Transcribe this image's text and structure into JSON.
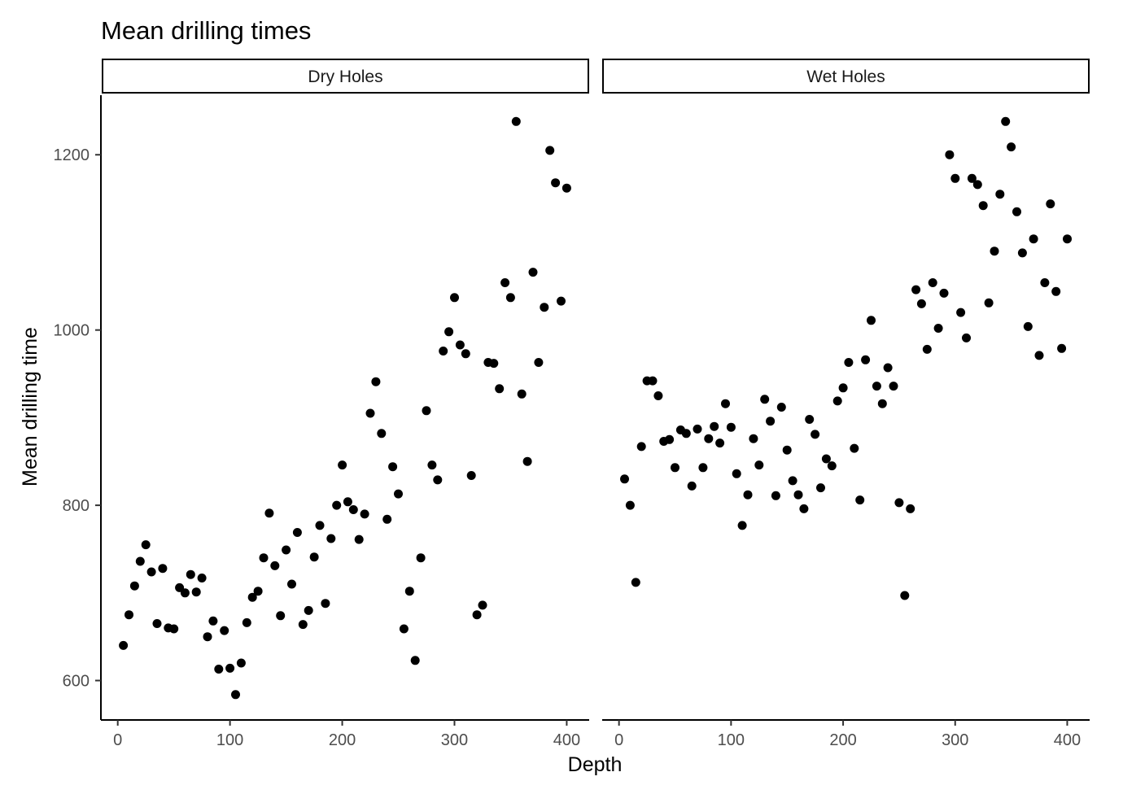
{
  "chart_data": {
    "type": "scatter",
    "title": "Mean drilling times",
    "xlabel": "Depth",
    "ylabel": "Mean drilling time",
    "xlim": [
      -15,
      420
    ],
    "ylim": [
      555,
      1268
    ],
    "x_ticks": [
      0,
      100,
      200,
      300,
      400
    ],
    "y_ticks": [
      600,
      800,
      1000,
      1200
    ],
    "x_tick_labels": [
      "0",
      "100",
      "200",
      "300",
      "400"
    ],
    "y_tick_labels": [
      "600",
      "800",
      "1000",
      "1200"
    ],
    "grid": false,
    "legend": "none",
    "point_color": "#000000",
    "panels": [
      {
        "name": "Dry Holes",
        "points": [
          [
            5,
            640
          ],
          [
            10,
            675
          ],
          [
            15,
            708
          ],
          [
            20,
            736
          ],
          [
            25,
            755
          ],
          [
            30,
            724
          ],
          [
            35,
            665
          ],
          [
            40,
            728
          ],
          [
            45,
            660
          ],
          [
            50,
            659
          ],
          [
            55,
            706
          ],
          [
            60,
            700
          ],
          [
            65,
            721
          ],
          [
            70,
            701
          ],
          [
            75,
            717
          ],
          [
            80,
            650
          ],
          [
            85,
            668
          ],
          [
            90,
            613
          ],
          [
            95,
            657
          ],
          [
            100,
            614
          ],
          [
            105,
            584
          ],
          [
            110,
            620
          ],
          [
            115,
            666
          ],
          [
            120,
            695
          ],
          [
            125,
            702
          ],
          [
            130,
            740
          ],
          [
            135,
            791
          ],
          [
            140,
            731
          ],
          [
            145,
            674
          ],
          [
            150,
            749
          ],
          [
            155,
            710
          ],
          [
            160,
            769
          ],
          [
            165,
            664
          ],
          [
            170,
            680
          ],
          [
            175,
            741
          ],
          [
            180,
            777
          ],
          [
            185,
            688
          ],
          [
            190,
            762
          ],
          [
            195,
            800
          ],
          [
            200,
            846
          ],
          [
            205,
            804
          ],
          [
            210,
            795
          ],
          [
            215,
            761
          ],
          [
            220,
            790
          ],
          [
            225,
            905
          ],
          [
            230,
            941
          ],
          [
            235,
            882
          ],
          [
            240,
            784
          ],
          [
            245,
            844
          ],
          [
            250,
            813
          ],
          [
            255,
            659
          ],
          [
            260,
            702
          ],
          [
            265,
            623
          ],
          [
            270,
            740
          ],
          [
            275,
            908
          ],
          [
            280,
            846
          ],
          [
            285,
            829
          ],
          [
            290,
            976
          ],
          [
            295,
            998
          ],
          [
            300,
            1037
          ],
          [
            305,
            983
          ],
          [
            310,
            973
          ],
          [
            315,
            834
          ],
          [
            320,
            675
          ],
          [
            325,
            686
          ],
          [
            330,
            963
          ],
          [
            335,
            962
          ],
          [
            340,
            933
          ],
          [
            345,
            1054
          ],
          [
            350,
            1037
          ],
          [
            355,
            1238
          ],
          [
            360,
            927
          ],
          [
            365,
            850
          ],
          [
            370,
            1066
          ],
          [
            375,
            963
          ],
          [
            380,
            1026
          ],
          [
            385,
            1205
          ],
          [
            390,
            1168
          ],
          [
            395,
            1033
          ],
          [
            400,
            1162
          ]
        ]
      },
      {
        "name": "Wet Holes",
        "points": [
          [
            5,
            830
          ],
          [
            10,
            800
          ],
          [
            15,
            712
          ],
          [
            20,
            867
          ],
          [
            25,
            942
          ],
          [
            30,
            942
          ],
          [
            35,
            925
          ],
          [
            40,
            873
          ],
          [
            45,
            875
          ],
          [
            50,
            843
          ],
          [
            55,
            886
          ],
          [
            60,
            882
          ],
          [
            65,
            822
          ],
          [
            70,
            887
          ],
          [
            75,
            843
          ],
          [
            80,
            876
          ],
          [
            85,
            890
          ],
          [
            90,
            871
          ],
          [
            95,
            916
          ],
          [
            100,
            889
          ],
          [
            105,
            836
          ],
          [
            110,
            777
          ],
          [
            115,
            812
          ],
          [
            120,
            876
          ],
          [
            125,
            846
          ],
          [
            130,
            921
          ],
          [
            135,
            896
          ],
          [
            140,
            811
          ],
          [
            145,
            912
          ],
          [
            150,
            863
          ],
          [
            155,
            828
          ],
          [
            160,
            812
          ],
          [
            165,
            796
          ],
          [
            170,
            898
          ],
          [
            175,
            881
          ],
          [
            180,
            820
          ],
          [
            185,
            853
          ],
          [
            190,
            845
          ],
          [
            195,
            919
          ],
          [
            200,
            934
          ],
          [
            205,
            963
          ],
          [
            210,
            865
          ],
          [
            215,
            806
          ],
          [
            220,
            966
          ],
          [
            225,
            1011
          ],
          [
            230,
            936
          ],
          [
            235,
            916
          ],
          [
            240,
            957
          ],
          [
            245,
            936
          ],
          [
            250,
            803
          ],
          [
            255,
            697
          ],
          [
            260,
            796
          ],
          [
            265,
            1046
          ],
          [
            270,
            1030
          ],
          [
            275,
            978
          ],
          [
            280,
            1054
          ],
          [
            285,
            1002
          ],
          [
            290,
            1042
          ],
          [
            295,
            1200
          ],
          [
            300,
            1173
          ],
          [
            305,
            1020
          ],
          [
            310,
            991
          ],
          [
            315,
            1173
          ],
          [
            320,
            1166
          ],
          [
            325,
            1142
          ],
          [
            330,
            1031
          ],
          [
            335,
            1090
          ],
          [
            340,
            1155
          ],
          [
            345,
            1238
          ],
          [
            350,
            1209
          ],
          [
            355,
            1135
          ],
          [
            360,
            1088
          ],
          [
            365,
            1004
          ],
          [
            370,
            1104
          ],
          [
            375,
            971
          ],
          [
            380,
            1054
          ],
          [
            385,
            1144
          ],
          [
            390,
            1044
          ],
          [
            395,
            979
          ],
          [
            400,
            1104
          ]
        ]
      }
    ]
  }
}
